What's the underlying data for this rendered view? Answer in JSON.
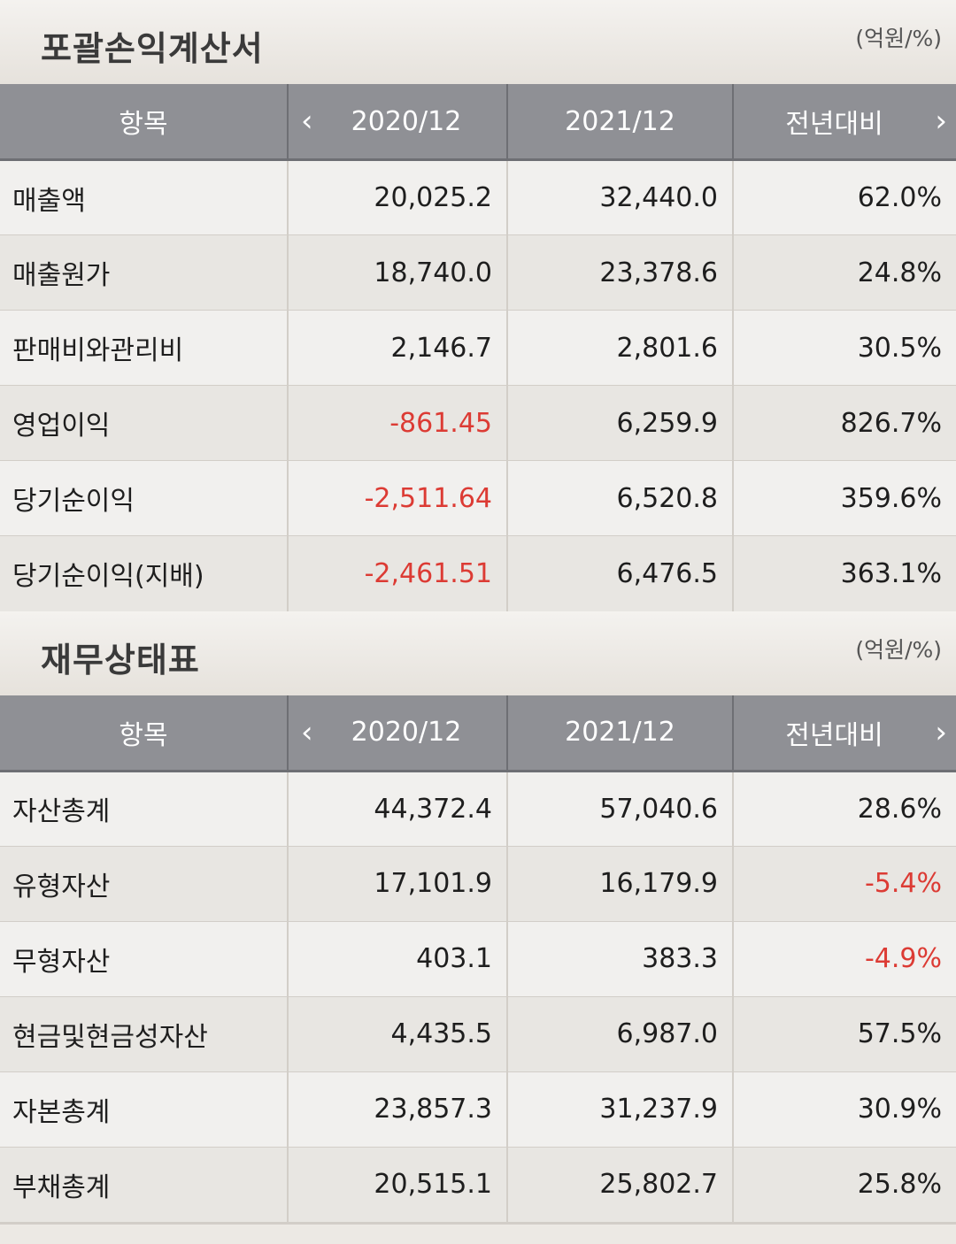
{
  "income": {
    "title": "포괄손익계산서",
    "unit": "(억원/%)",
    "header": {
      "item": "항목",
      "year1": "2020/12",
      "year2": "2021/12",
      "yoy": "전년대비"
    },
    "rows": [
      {
        "label": "매출액",
        "v2020": "20,025.2",
        "v2021": "32,440.0",
        "yoy": "62.0%"
      },
      {
        "label": "매출원가",
        "v2020": "18,740.0",
        "v2021": "23,378.6",
        "yoy": "24.8%"
      },
      {
        "label": "판매비와관리비",
        "v2020": "2,146.7",
        "v2021": "2,801.6",
        "yoy": "30.5%"
      },
      {
        "label": "영업이익",
        "v2020": "-861.45",
        "v2021": "6,259.9",
        "yoy": "826.7%"
      },
      {
        "label": "당기순이익",
        "v2020": "-2,511.64",
        "v2021": "6,520.8",
        "yoy": "359.6%"
      },
      {
        "label": "당기순이익(지배)",
        "v2020": "-2,461.51",
        "v2021": "6,476.5",
        "yoy": "363.1%"
      }
    ]
  },
  "balance": {
    "title": "재무상태표",
    "unit": "(억원/%)",
    "header": {
      "item": "항목",
      "year1": "2020/12",
      "year2": "2021/12",
      "yoy": "전년대비"
    },
    "rows": [
      {
        "label": "자산총계",
        "v2020": "44,372.4",
        "v2021": "57,040.6",
        "yoy": "28.6%"
      },
      {
        "label": "유형자산",
        "v2020": "17,101.9",
        "v2021": "16,179.9",
        "yoy": "-5.4%"
      },
      {
        "label": "무형자산",
        "v2020": "403.1",
        "v2021": "383.3",
        "yoy": "-4.9%"
      },
      {
        "label": "현금및현금성자산",
        "v2020": "4,435.5",
        "v2021": "6,987.0",
        "yoy": "57.5%"
      },
      {
        "label": "자본총계",
        "v2020": "23,857.3",
        "v2021": "31,237.9",
        "yoy": "30.9%"
      },
      {
        "label": "부채총계",
        "v2020": "20,515.1",
        "v2021": "25,802.7",
        "yoy": "25.8%"
      }
    ]
  },
  "colors": {
    "negative": "#dc3b34",
    "header_bg": "#8f9095"
  },
  "icons": {
    "prev": "chevron-left-icon",
    "next": "chevron-right-icon"
  }
}
